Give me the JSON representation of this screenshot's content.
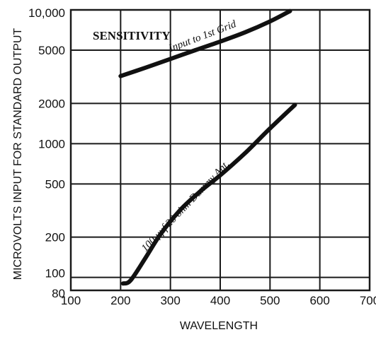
{
  "chart_data": {
    "type": "line",
    "title": "SENSITIVITY",
    "xlabel": "WAVELENGTH",
    "ylabel": "MICROVOLTS INPUT FOR STANDARD OUTPUT",
    "xlim": [
      100,
      700
    ],
    "ylim": [
      80,
      10000
    ],
    "yscale": "log",
    "grid": true,
    "x_ticks": [
      "100",
      "200",
      "300",
      "400",
      "500",
      "600",
      "700"
    ],
    "x_tick_values": [
      100,
      200,
      300,
      400,
      500,
      600,
      700
    ],
    "y_ticks": [
      "80",
      "100",
      "200",
      "500",
      "1000",
      "2000",
      "5000",
      "10,000"
    ],
    "y_tick_values": [
      80,
      100,
      200,
      500,
      1000,
      2000,
      5000,
      10000
    ],
    "series": [
      {
        "name": "Input to 1st Grid",
        "x": [
          200,
          250,
          300,
          350,
          400,
          450,
          500,
          540
        ],
        "y": [
          3200,
          3700,
          4300,
          5000,
          5800,
          6800,
          8200,
          9800
        ]
      },
      {
        "name": "100 μμf 20 ohm Dummy Ant.",
        "x": [
          205,
          220,
          250,
          280,
          320,
          360,
          400,
          450,
          500,
          550
        ],
        "y": [
          90,
          95,
          140,
          210,
          320,
          440,
          580,
          850,
          1300,
          1950
        ]
      }
    ]
  }
}
